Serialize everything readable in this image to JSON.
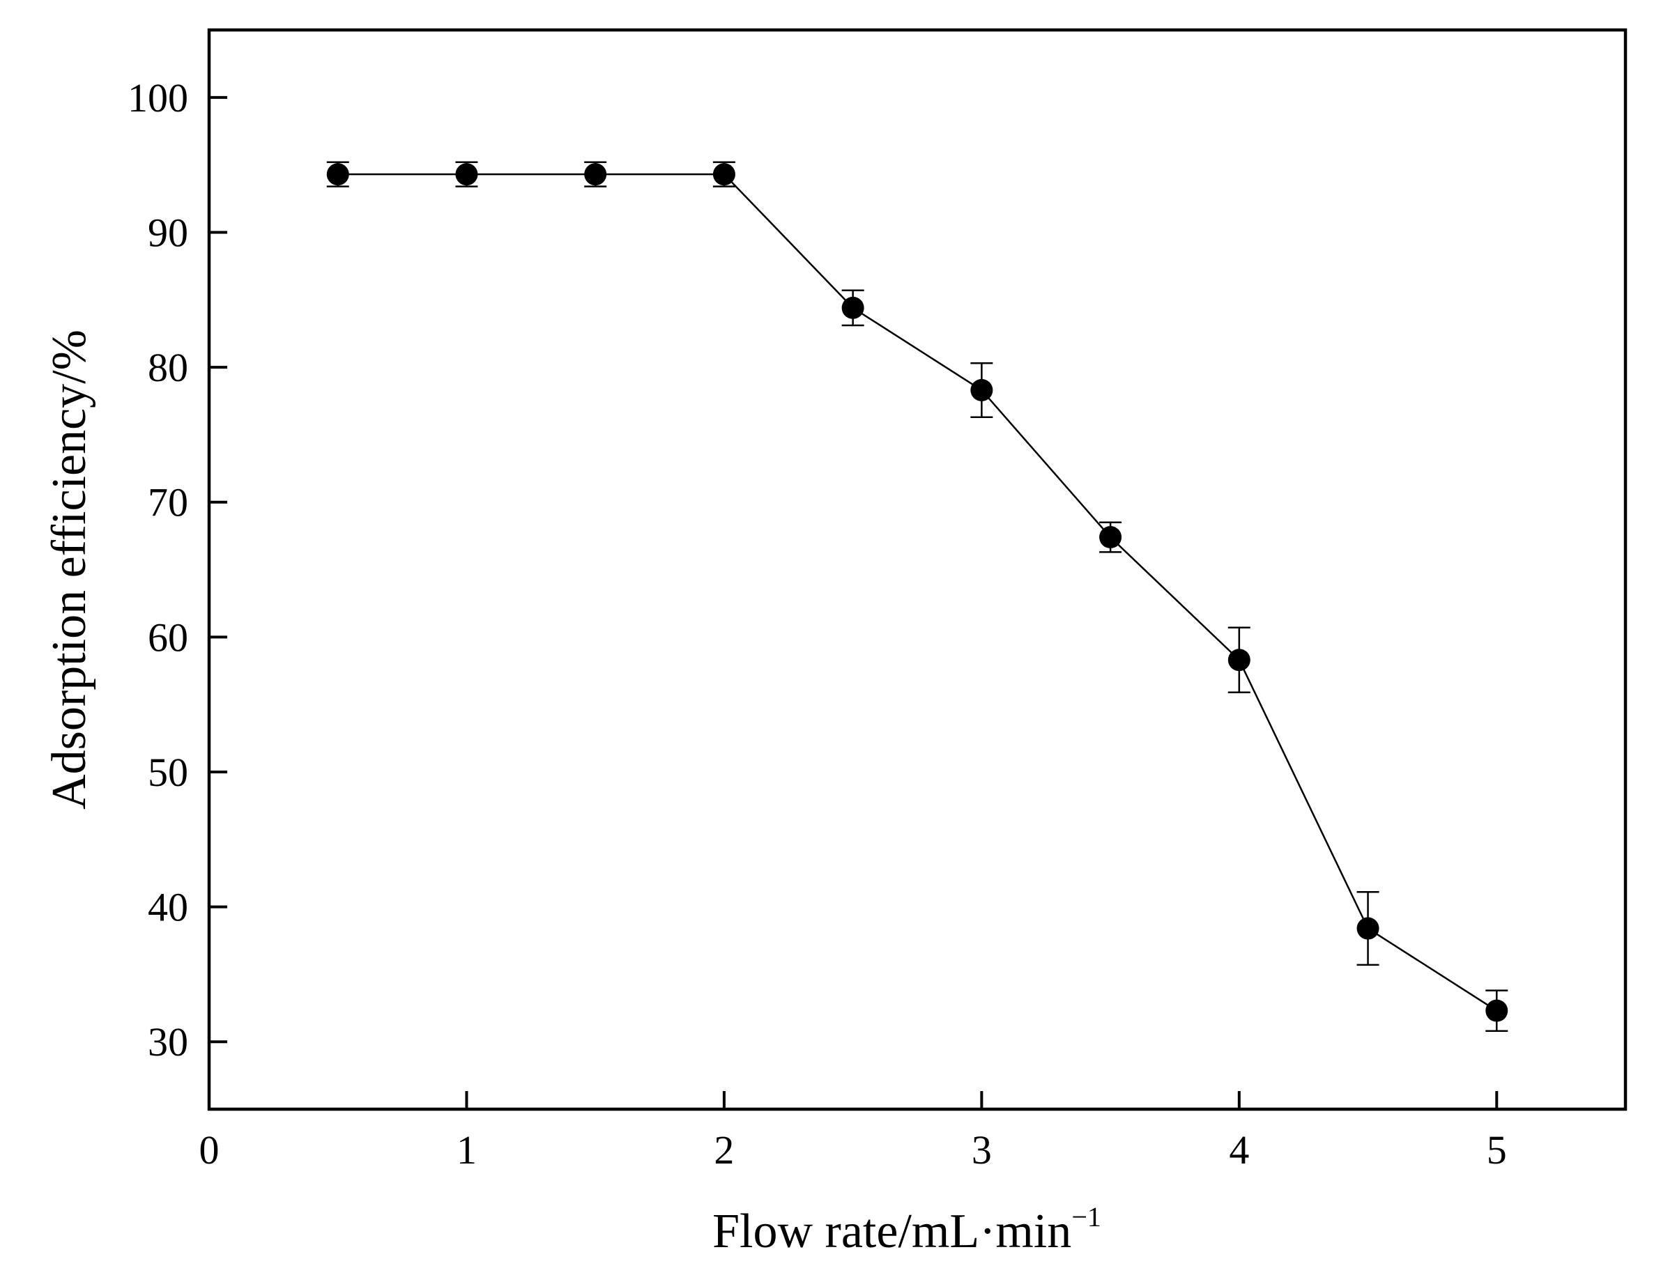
{
  "chart_data": {
    "type": "scatter",
    "title": "",
    "xlabel": "Flow rate/mL·min",
    "xlabel_superscript": "−1",
    "ylabel": "Adsorption efficiency/%",
    "xlim": [
      0,
      5.5
    ],
    "ylim": [
      25,
      105
    ],
    "xticks": [
      0,
      1,
      2,
      3,
      4,
      5
    ],
    "xtick_labels": [
      "0",
      "1",
      "2",
      "3",
      "4",
      "5"
    ],
    "yticks": [
      30,
      40,
      50,
      60,
      70,
      80,
      90,
      100
    ],
    "ytick_labels": [
      "30",
      "40",
      "50",
      "60",
      "70",
      "80",
      "90",
      "100"
    ],
    "grid": false,
    "legend": "none",
    "connected_by_line": true,
    "series": [
      {
        "x": [
          0.5,
          1.0,
          1.5,
          2.0,
          2.5,
          3.0,
          3.5,
          4.0,
          4.5,
          5.0
        ],
        "y": [
          94.3,
          94.3,
          94.3,
          94.3,
          84.4,
          78.3,
          67.4,
          58.3,
          38.4,
          32.3
        ],
        "error": [
          0.9,
          0.9,
          0.9,
          0.9,
          1.3,
          2.0,
          1.1,
          2.4,
          2.7,
          1.5
        ],
        "marker": "filled-circle",
        "color": "#000000"
      }
    ]
  }
}
